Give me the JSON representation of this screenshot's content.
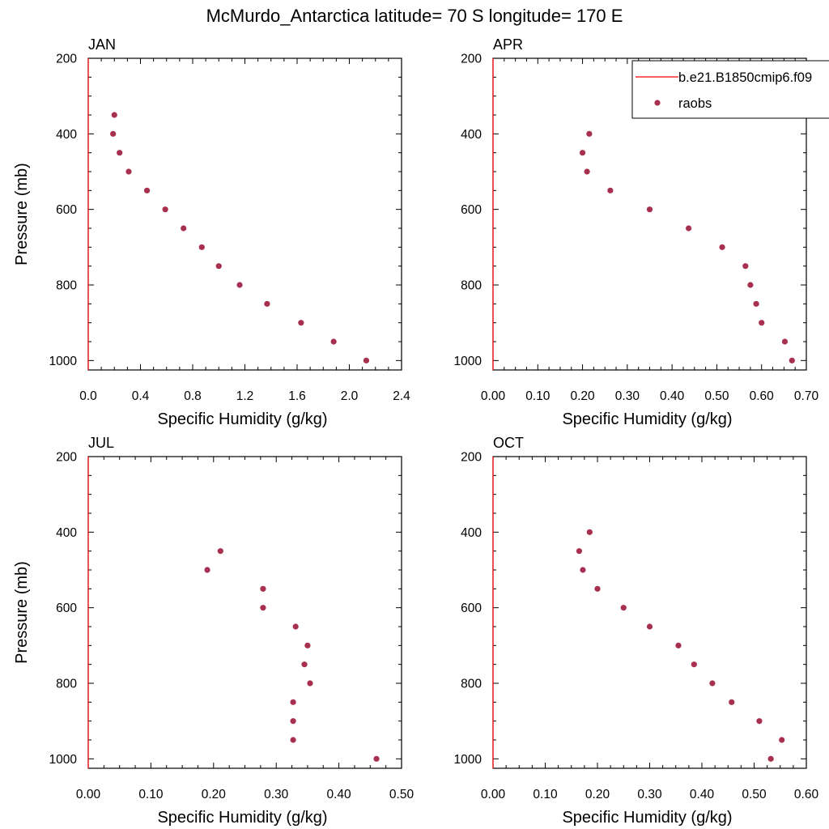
{
  "figure": {
    "title": "McMurdo_Antarctica  latitude= 70 S longitude= 170 E"
  },
  "legend": {
    "model_label": "b.e21.B1850cmip6.f09",
    "obs_label": "raobs",
    "model_color": "#ff0000",
    "obs_color": "#a8304f"
  },
  "chart_data": [
    {
      "type": "scatter",
      "title": "JAN",
      "xlabel": "Specific Humidity (g/kg)",
      "ylabel": "Pressure (mb)",
      "xlim": [
        0,
        2.4
      ],
      "ylim": [
        1025,
        200
      ],
      "xticks": [
        0,
        0.4,
        0.8,
        1.2,
        1.6,
        2.0,
        2.4
      ],
      "xticklabels": [
        "0.0",
        "0.4",
        "0.8",
        "1.2",
        "1.6",
        "2.0",
        "2.4"
      ],
      "yticks": [
        200,
        400,
        600,
        800,
        1000
      ],
      "yticklabels": [
        "200",
        "400",
        "600",
        "800",
        "1000"
      ],
      "series": [
        {
          "name": "raobs",
          "x": [
            0.2,
            0.19,
            0.24,
            0.31,
            0.45,
            0.59,
            0.73,
            0.87,
            1.0,
            1.16,
            1.37,
            1.63,
            1.88,
            2.13
          ],
          "y": [
            350,
            400,
            450,
            500,
            550,
            600,
            650,
            700,
            750,
            800,
            850,
            900,
            950,
            1000
          ]
        },
        {
          "name": "b.e21.B1850cmip6.f09",
          "x": [
            0,
            0
          ],
          "y": [
            200,
            1025
          ]
        }
      ]
    },
    {
      "type": "scatter",
      "title": "APR",
      "xlabel": "Specific Humidity (g/kg)",
      "ylabel": "",
      "xlim": [
        0,
        0.7
      ],
      "ylim": [
        1025,
        200
      ],
      "xticks": [
        0,
        0.1,
        0.2,
        0.3,
        0.4,
        0.5,
        0.6,
        0.7
      ],
      "xticklabels": [
        "0.00",
        "0.10",
        "0.20",
        "0.30",
        "0.40",
        "0.50",
        "0.60",
        "0.70"
      ],
      "yticks": [
        200,
        400,
        600,
        800,
        1000
      ],
      "yticklabels": [
        "200",
        "400",
        "600",
        "800",
        "1000"
      ],
      "series": [
        {
          "name": "raobs",
          "x": [
            0.215,
            0.2,
            0.21,
            0.262,
            0.35,
            0.437,
            0.512,
            0.564,
            0.575,
            0.588,
            0.6,
            0.652,
            0.668
          ],
          "y": [
            400,
            450,
            500,
            550,
            600,
            650,
            700,
            750,
            800,
            850,
            900,
            950,
            1000
          ]
        },
        {
          "name": "b.e21.B1850cmip6.f09",
          "x": [
            0,
            0
          ],
          "y": [
            200,
            1025
          ]
        }
      ]
    },
    {
      "type": "scatter",
      "title": "JUL",
      "xlabel": "Specific Humidity (g/kg)",
      "ylabel": "Pressure (mb)",
      "xlim": [
        0,
        0.5
      ],
      "ylim": [
        1025,
        200
      ],
      "xticks": [
        0,
        0.1,
        0.2,
        0.3,
        0.4,
        0.5
      ],
      "xticklabels": [
        "0.00",
        "0.10",
        "0.20",
        "0.30",
        "0.40",
        "0.50"
      ],
      "yticks": [
        200,
        400,
        600,
        800,
        1000
      ],
      "yticklabels": [
        "200",
        "400",
        "600",
        "800",
        "1000"
      ],
      "series": [
        {
          "name": "raobs",
          "x": [
            0.211,
            0.19,
            0.279,
            0.279,
            0.331,
            0.35,
            0.345,
            0.354,
            0.327,
            0.327,
            0.327,
            0.46
          ],
          "y": [
            450,
            500,
            550,
            600,
            650,
            700,
            750,
            800,
            850,
            900,
            950,
            1000
          ]
        },
        {
          "name": "b.e21.B1850cmip6.f09",
          "x": [
            0,
            0
          ],
          "y": [
            200,
            1025
          ]
        }
      ]
    },
    {
      "type": "scatter",
      "title": "OCT",
      "xlabel": "Specific Humidity (g/kg)",
      "ylabel": "",
      "xlim": [
        0,
        0.6
      ],
      "ylim": [
        1025,
        200
      ],
      "xticks": [
        0,
        0.1,
        0.2,
        0.3,
        0.4,
        0.5,
        0.6
      ],
      "xticklabels": [
        "0.00",
        "0.10",
        "0.20",
        "0.30",
        "0.40",
        "0.50",
        "0.60"
      ],
      "yticks": [
        200,
        400,
        600,
        800,
        1000
      ],
      "yticklabels": [
        "200",
        "400",
        "600",
        "800",
        "1000"
      ],
      "series": [
        {
          "name": "raobs",
          "x": [
            0.185,
            0.165,
            0.172,
            0.2,
            0.25,
            0.3,
            0.355,
            0.385,
            0.42,
            0.457,
            0.51,
            0.553,
            0.532
          ],
          "y": [
            400,
            450,
            500,
            550,
            600,
            650,
            700,
            750,
            800,
            850,
            900,
            950,
            1000
          ]
        },
        {
          "name": "b.e21.B1850cmip6.f09",
          "x": [
            0,
            0
          ],
          "y": [
            200,
            1025
          ]
        }
      ]
    }
  ]
}
